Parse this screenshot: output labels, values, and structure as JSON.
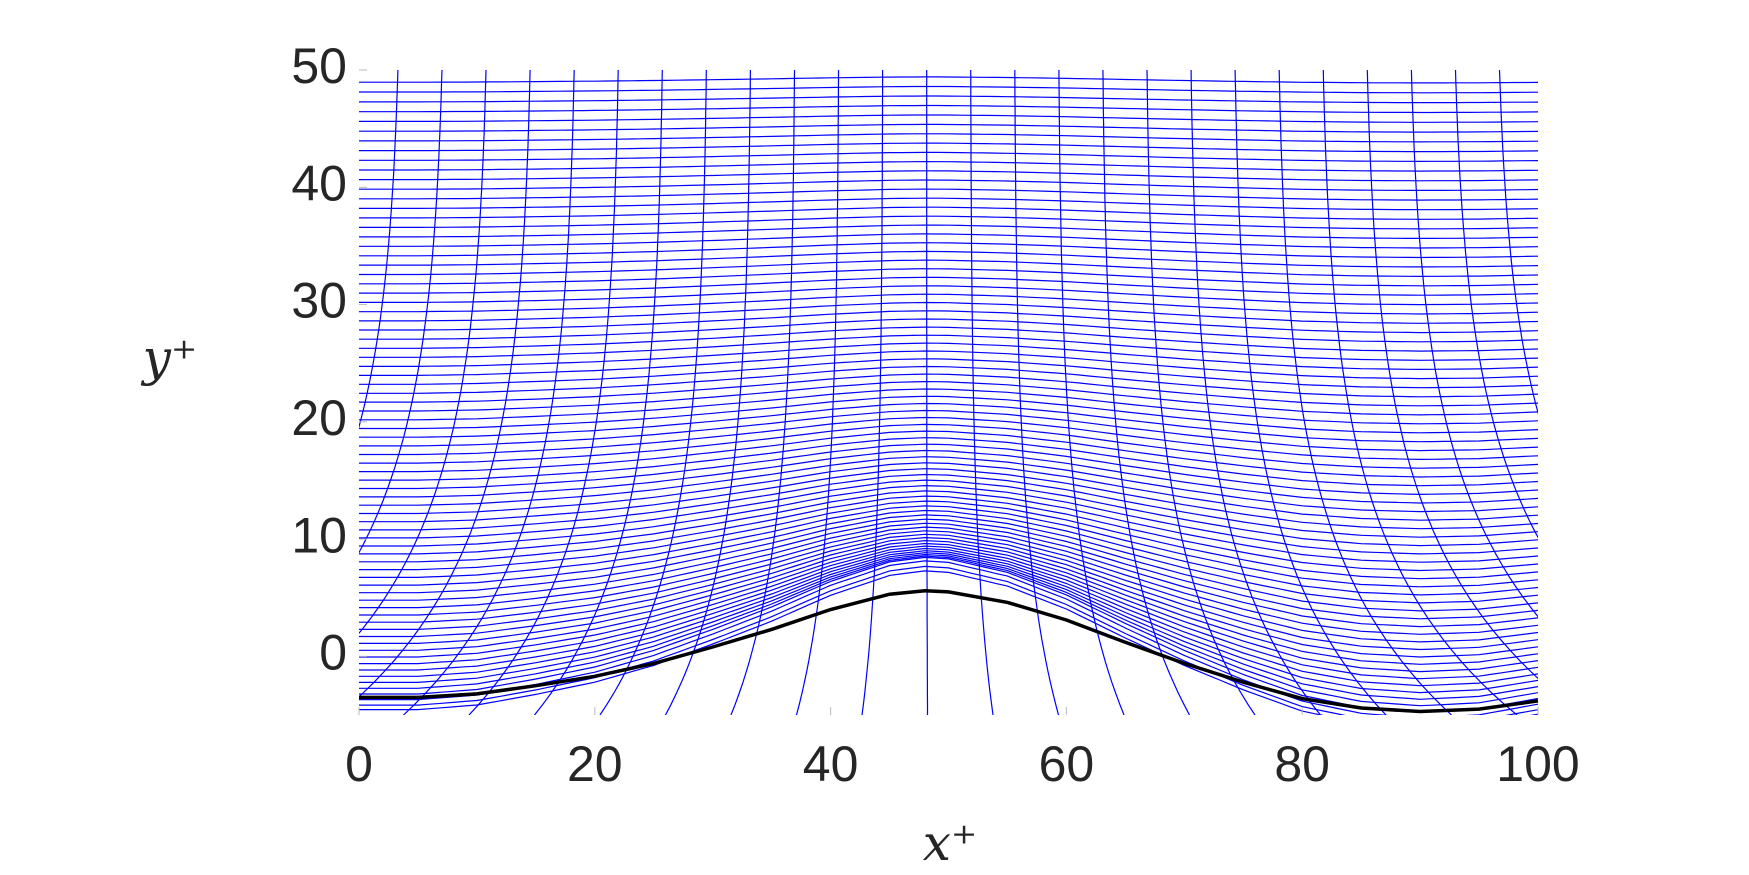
{
  "chart_data": {
    "type": "line",
    "x_label": "x⁺",
    "y_label": "y⁺",
    "x": [
      0,
      5,
      10,
      15,
      20,
      25,
      30,
      35,
      40,
      45,
      48,
      50,
      55,
      60,
      65,
      70,
      75,
      80,
      85,
      90,
      95,
      100
    ],
    "series": [
      {
        "color": "#000000",
        "values": [
          -3.5,
          -3.5,
          -3.2,
          -2.5,
          -1.7,
          -0.6,
          0.8,
          2.3,
          4.0,
          5.3,
          5.6,
          5.5,
          4.6,
          3.1,
          1.2,
          -0.6,
          -2.2,
          -3.6,
          -4.4,
          -4.7,
          -4.5,
          -3.8
        ]
      }
    ],
    "mesh_color": "#0000ff",
    "xlim": [
      0,
      100
    ],
    "ylim": [
      -5,
      50
    ],
    "xticks": [
      0,
      20,
      40,
      60,
      80,
      100
    ],
    "yticks": [
      0,
      10,
      20,
      30,
      40,
      50
    ]
  }
}
